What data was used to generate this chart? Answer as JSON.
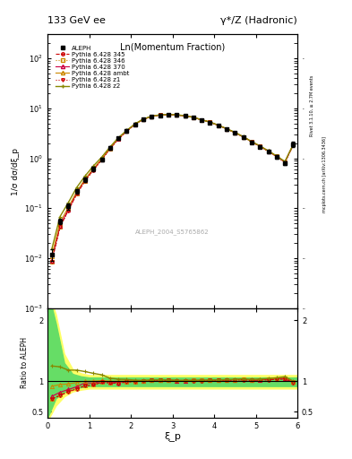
{
  "title_left": "133 GeV ee",
  "title_right": "γ*/Z (Hadronic)",
  "xlabel": "ξ_p",
  "ylabel_main": "1/σ dσ/dξ_p",
  "ylabel_ratio": "Ratio to ALEPH",
  "plot_label": "Ln(Momentum Fraction)",
  "watermark": "ALEPH_2004_S5765862",
  "right_label_top": "Rivet 3.1.10, ≥ 2.7M events",
  "right_label_bottom": "mcplots.cern.ch [arXiv:1306.3436]",
  "xi_data": [
    0.1,
    0.3,
    0.5,
    0.7,
    0.9,
    1.1,
    1.3,
    1.5,
    1.7,
    1.9,
    2.1,
    2.3,
    2.5,
    2.7,
    2.9,
    3.1,
    3.3,
    3.5,
    3.7,
    3.9,
    4.1,
    4.3,
    4.5,
    4.7,
    4.9,
    5.1,
    5.3,
    5.5,
    5.7,
    5.9
  ],
  "aleph_y": [
    0.012,
    0.055,
    0.11,
    0.22,
    0.38,
    0.62,
    0.95,
    1.6,
    2.5,
    3.5,
    4.8,
    6.0,
    6.8,
    7.2,
    7.4,
    7.3,
    7.0,
    6.5,
    5.8,
    5.2,
    4.5,
    3.8,
    3.2,
    2.6,
    2.1,
    1.7,
    1.35,
    1.05,
    0.8,
    1.9
  ],
  "aleph_yerr": [
    0.003,
    0.007,
    0.015,
    0.025,
    0.04,
    0.06,
    0.09,
    0.13,
    0.19,
    0.26,
    0.31,
    0.36,
    0.39,
    0.41,
    0.41,
    0.39,
    0.36,
    0.31,
    0.29,
    0.26,
    0.23,
    0.21,
    0.19,
    0.16,
    0.14,
    0.12,
    0.1,
    0.09,
    0.08,
    0.21
  ],
  "py345_y": [
    0.0085,
    0.042,
    0.091,
    0.192,
    0.352,
    0.582,
    0.932,
    1.555,
    2.41,
    3.46,
    4.76,
    6.01,
    6.89,
    7.31,
    7.51,
    7.36,
    7.06,
    6.56,
    5.86,
    5.26,
    4.56,
    3.86,
    3.26,
    2.66,
    2.13,
    1.73,
    1.38,
    1.08,
    0.83,
    1.86
  ],
  "py346_y": [
    0.0085,
    0.043,
    0.092,
    0.195,
    0.355,
    0.585,
    0.935,
    1.56,
    2.42,
    3.47,
    4.77,
    6.02,
    6.88,
    7.32,
    7.52,
    7.37,
    7.07,
    6.57,
    5.87,
    5.27,
    4.57,
    3.87,
    3.27,
    2.67,
    2.14,
    1.74,
    1.39,
    1.09,
    0.84,
    1.87
  ],
  "py370_y": [
    0.009,
    0.045,
    0.095,
    0.2,
    0.37,
    0.6,
    0.95,
    1.58,
    2.45,
    3.5,
    4.8,
    6.02,
    6.9,
    7.33,
    7.52,
    7.37,
    7.07,
    6.57,
    5.87,
    5.27,
    4.57,
    3.87,
    3.27,
    2.67,
    2.14,
    1.74,
    1.39,
    1.09,
    0.84,
    1.87
  ],
  "pyamb_y": [
    0.011,
    0.052,
    0.105,
    0.215,
    0.38,
    0.62,
    0.96,
    1.6,
    2.5,
    3.52,
    4.82,
    6.05,
    6.92,
    7.35,
    7.53,
    7.38,
    7.08,
    6.58,
    5.88,
    5.28,
    4.58,
    3.88,
    3.28,
    2.68,
    2.15,
    1.75,
    1.4,
    1.1,
    0.855,
    1.885
  ],
  "pyz1_y": [
    0.0085,
    0.042,
    0.091,
    0.192,
    0.352,
    0.582,
    0.932,
    1.555,
    2.41,
    3.46,
    4.76,
    6.01,
    6.89,
    7.31,
    7.51,
    7.36,
    7.06,
    6.56,
    5.86,
    5.26,
    4.56,
    3.86,
    3.26,
    2.66,
    2.13,
    1.73,
    1.38,
    1.08,
    0.83,
    1.86
  ],
  "pyz2_y": [
    0.015,
    0.068,
    0.13,
    0.26,
    0.44,
    0.7,
    1.05,
    1.68,
    2.58,
    3.6,
    4.88,
    6.08,
    6.95,
    7.38,
    7.55,
    7.4,
    7.1,
    6.6,
    5.9,
    5.3,
    4.6,
    3.9,
    3.3,
    2.7,
    2.16,
    1.76,
    1.41,
    1.11,
    0.86,
    1.9
  ],
  "ylim_main": [
    0.001,
    300
  ],
  "ylim_ratio": [
    0.4,
    2.2
  ],
  "xlim": [
    0.0,
    6.0
  ],
  "green_band_x": [
    0.0,
    0.2,
    0.4,
    0.6,
    0.8,
    1.0,
    6.0
  ],
  "green_band_lo": [
    0.4,
    0.72,
    0.82,
    0.88,
    0.9,
    0.92,
    0.92
  ],
  "green_band_hi": [
    2.5,
    1.95,
    1.3,
    1.12,
    1.08,
    1.06,
    1.06
  ],
  "yellow_band_x": [
    0.0,
    0.2,
    0.4,
    0.6,
    0.8,
    1.0,
    6.0
  ],
  "yellow_band_lo": [
    0.35,
    0.6,
    0.75,
    0.83,
    0.86,
    0.88,
    0.88
  ],
  "yellow_band_hi": [
    2.5,
    2.1,
    1.45,
    1.2,
    1.13,
    1.1,
    1.1
  ]
}
